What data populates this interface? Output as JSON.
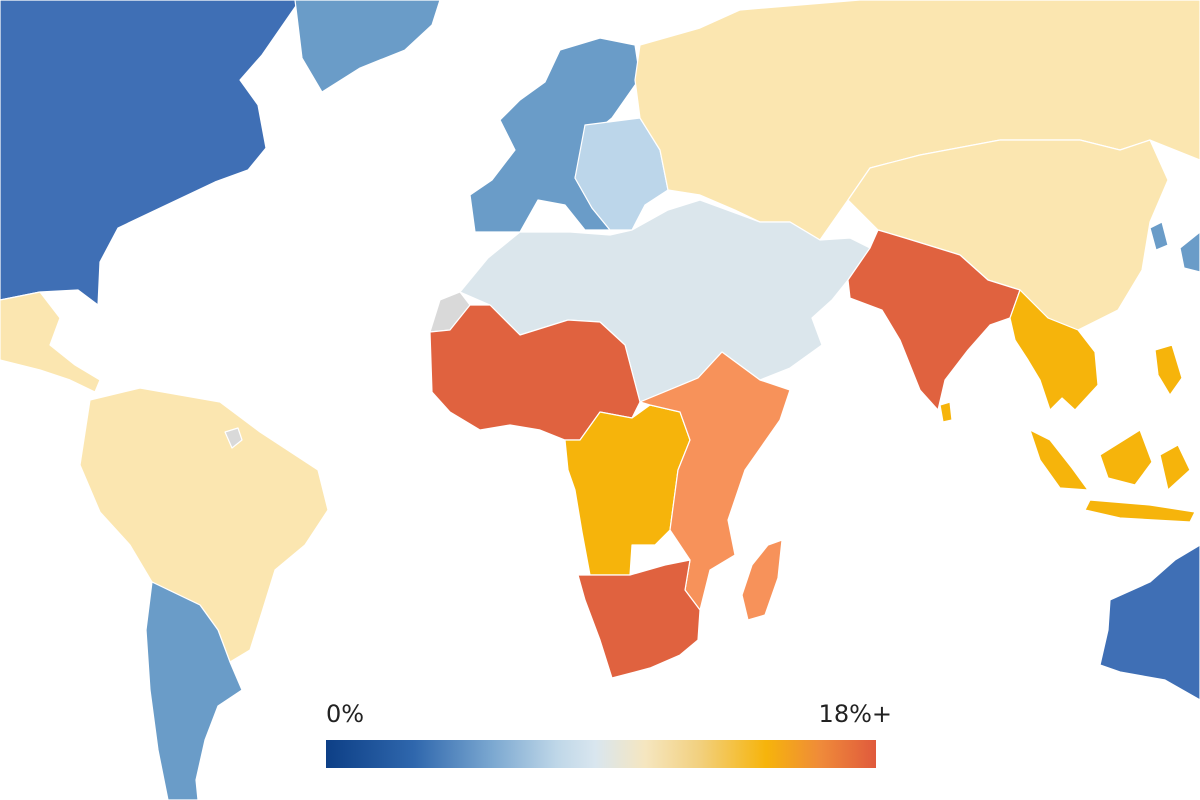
{
  "legend": {
    "min_label": "0%",
    "max_label": "18%+",
    "color_stops": [
      "#0d3f86",
      "#2f67ad",
      "#7aa7d0",
      "#bfd7e8",
      "#d9e6ef",
      "#f5e6c0",
      "#f2d07e",
      "#f6b40b",
      "#ef8a3a",
      "#e05a3c"
    ]
  },
  "palette": {
    "dark_blue": "#3f6fb5",
    "mid_blue": "#6a9cc8",
    "light_blue": "#bcd6ea",
    "pale_grey_blue": "#dbe6ec",
    "pale_yellow": "#fbe6b0",
    "yellow_orange": "#f6b40b",
    "light_orange": "#f7925a",
    "red_orange": "#e0623f",
    "no_data": "#d9d9d9"
  },
  "regions": [
    {
      "name": "north-america",
      "color_key": "dark_blue"
    },
    {
      "name": "greenland",
      "color_key": "mid_blue"
    },
    {
      "name": "western-europe",
      "color_key": "mid_blue"
    },
    {
      "name": "eastern-europe",
      "color_key": "light_blue"
    },
    {
      "name": "russia-central-asia",
      "color_key": "pale_yellow"
    },
    {
      "name": "china-east-asia",
      "color_key": "pale_yellow"
    },
    {
      "name": "middle-east-north-africa",
      "color_key": "pale_grey_blue"
    },
    {
      "name": "west-africa",
      "color_key": "red_orange"
    },
    {
      "name": "central-africa",
      "color_key": "yellow_orange"
    },
    {
      "name": "east-africa",
      "color_key": "light_orange"
    },
    {
      "name": "southern-africa",
      "color_key": "red_orange"
    },
    {
      "name": "madagascar",
      "color_key": "light_orange"
    },
    {
      "name": "south-asia",
      "color_key": "red_orange"
    },
    {
      "name": "sri-lanka",
      "color_key": "yellow_orange"
    },
    {
      "name": "southeast-asia",
      "color_key": "yellow_orange"
    },
    {
      "name": "indonesia",
      "color_key": "yellow_orange"
    },
    {
      "name": "japan",
      "color_key": "mid_blue"
    },
    {
      "name": "south-america",
      "color_key": "pale_yellow"
    },
    {
      "name": "central-america",
      "color_key": "pale_yellow"
    },
    {
      "name": "argentina-chile",
      "color_key": "mid_blue"
    },
    {
      "name": "australia",
      "color_key": "dark_blue"
    },
    {
      "name": "western-sahara",
      "color_key": "no_data"
    },
    {
      "name": "french-guiana",
      "color_key": "no_data"
    }
  ]
}
